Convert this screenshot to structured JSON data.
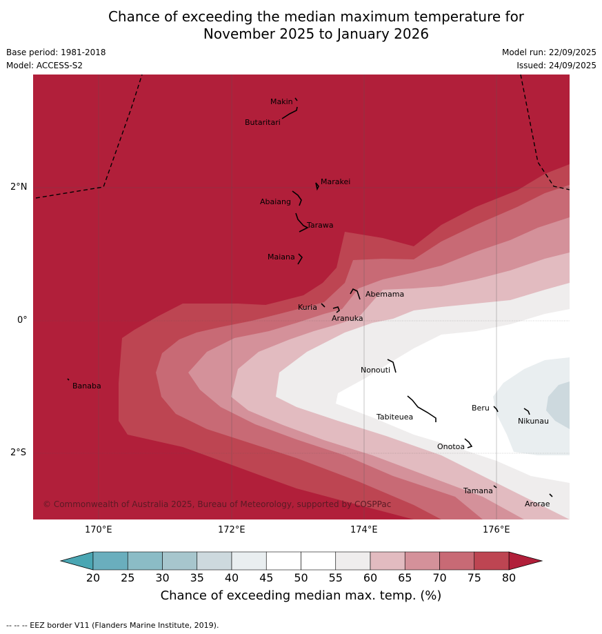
{
  "title_line1": "Chance of exceeding the median maximum temperature for",
  "title_line2": "November 2025 to January 2026",
  "meta": {
    "base_period": "Base period: 1981-2018",
    "model": "Model: ACCESS-S2",
    "model_run": "Model run: 22/09/2025",
    "issued": "Issued: 24/09/2025"
  },
  "latitude_labels": [
    "2°N",
    "0°",
    "2°S"
  ],
  "longitude_labels": [
    "170°E",
    "172°E",
    "174°E",
    "176°E"
  ],
  "islands": [
    "Makin",
    "Butaritari",
    "Marakei",
    "Abaiang",
    "Tarawa",
    "Maiana",
    "Abemama",
    "Kuria",
    "Aranuka",
    "Nonouti",
    "Banaba",
    "Beru",
    "Tabiteuea",
    "Nikunau",
    "Onotoa",
    "Tamana",
    "Arorae"
  ],
  "credit": "© Commonwealth of Australia 2025, Bureau of Meteorology, supported by COSPPac",
  "colorbar": {
    "ticks": [
      "20",
      "25",
      "30",
      "35",
      "40",
      "45",
      "50",
      "55",
      "60",
      "65",
      "70",
      "75",
      "80"
    ],
    "colors": [
      "#6aaebd",
      "#8bbcc6",
      "#a7c6cd",
      "#cdd9de",
      "#e9eef0",
      "#ffffff",
      "#ffffff",
      "#efeded",
      "#e2bbc0",
      "#d4919a",
      "#c86a75",
      "#bd4552"
    ],
    "under_color": "#4aa6b3",
    "over_color": "#b11f3a",
    "title": "Chance of exceeding median max. temp. (%)"
  },
  "footer": "--  --  -- EEZ border V11 (Flanders Marine Institute, 2019)."
}
